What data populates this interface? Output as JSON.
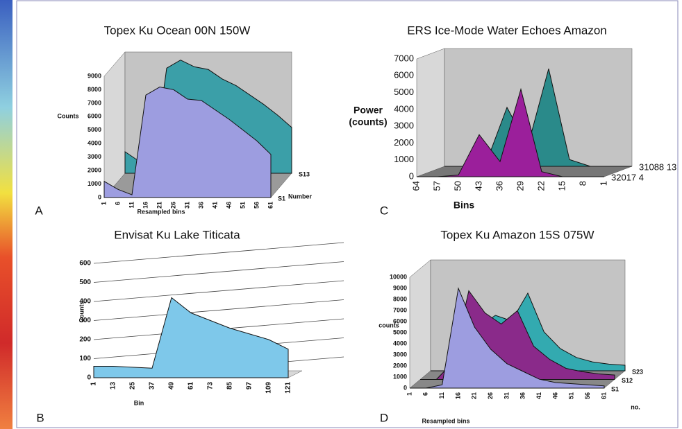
{
  "chart_data": [
    {
      "type": "area",
      "panel": "A",
      "title": "Topex Ku Ocean 00N 150W",
      "ylabel": "Counts",
      "xlabel": "Resampled bins",
      "zlabel": "Number",
      "grid": false,
      "categories": [
        "1",
        "6",
        "11",
        "16",
        "21",
        "26",
        "31",
        "36",
        "41",
        "46",
        "51",
        "56",
        "61"
      ],
      "ylim": [
        0,
        9000
      ],
      "yticks": [
        0,
        1000,
        2000,
        3000,
        4000,
        5000,
        6000,
        7000,
        8000,
        9000
      ],
      "series": [
        {
          "name": "S1",
          "color": "#9d9de0",
          "values": [
            1200,
            600,
            200,
            7600,
            8200,
            8000,
            7300,
            7200,
            6500,
            5800,
            5000,
            4200,
            3200
          ]
        },
        {
          "name": "S13",
          "color": "#3b9fa8",
          "values": [
            1600,
            900,
            300,
            7800,
            8400,
            7900,
            7700,
            7000,
            6500,
            5800,
            5100,
            4300,
            3400
          ]
        }
      ]
    },
    {
      "type": "area",
      "panel": "B",
      "title": "Envisat Ku Lake Titicata",
      "ylabel": "Counts",
      "xlabel": "Bin",
      "grid": true,
      "categories": [
        "1",
        "13",
        "25",
        "37",
        "49",
        "61",
        "73",
        "85",
        "97",
        "109",
        "121"
      ],
      "ylim": [
        0,
        600
      ],
      "yticks": [
        0,
        100,
        200,
        300,
        400,
        500,
        600
      ],
      "series": [
        {
          "color": "#7ec8ea",
          "values": [
            60,
            60,
            55,
            50,
            420,
            340,
            300,
            260,
            230,
            200,
            150
          ]
        }
      ]
    },
    {
      "type": "area",
      "panel": "C",
      "title": "ERS Ice-Mode  Water Echoes Amazon",
      "ylabel": [
        "Power",
        "(counts)"
      ],
      "xlabel": "Bins",
      "grid": false,
      "categories": [
        "64",
        "57",
        "50",
        "43",
        "36",
        "29",
        "22",
        "15",
        "8",
        "1"
      ],
      "ylim": [
        0,
        7000
      ],
      "yticks": [
        0,
        1000,
        2000,
        3000,
        4000,
        5000,
        6000,
        7000
      ],
      "series": [
        {
          "name": "32017 4",
          "color": "#9b1f9b",
          "values": [
            0,
            0,
            100,
            2500,
            900,
            5200,
            300,
            0,
            0,
            0
          ]
        },
        {
          "name": "31088 13",
          "color": "#2a8a8a",
          "values": [
            0,
            0,
            200,
            3500,
            1200,
            5800,
            400,
            0,
            0,
            0
          ]
        }
      ]
    },
    {
      "type": "area",
      "panel": "D",
      "title": "Topex Ku Amazon 15S 075W",
      "ylabel": "counts",
      "xlabel": "Resampled bins",
      "zlabel": "no.",
      "grid": false,
      "categories": [
        "1",
        "6",
        "11",
        "16",
        "21",
        "26",
        "31",
        "36",
        "41",
        "46",
        "51",
        "56",
        "61"
      ],
      "ylim": [
        0,
        10000
      ],
      "yticks": [
        0,
        1000,
        2000,
        3000,
        4000,
        5000,
        6000,
        7000,
        8000,
        9000,
        10000
      ],
      "series": [
        {
          "name": "S1",
          "color": "#9d9de0",
          "values": [
            0,
            0,
            300,
            9000,
            5500,
            3500,
            2200,
            1500,
            800,
            500,
            400,
            300,
            200
          ]
        },
        {
          "name": "S12",
          "color": "#8a2a8a",
          "values": [
            0,
            0,
            1500,
            8000,
            6000,
            5000,
            6200,
            3000,
            1800,
            1000,
            700,
            500,
            400
          ]
        },
        {
          "name": "S23",
          "color": "#33aab0",
          "values": [
            0,
            0,
            500,
            4000,
            5000,
            4500,
            7000,
            3500,
            2000,
            1200,
            800,
            600,
            500
          ]
        }
      ]
    }
  ]
}
